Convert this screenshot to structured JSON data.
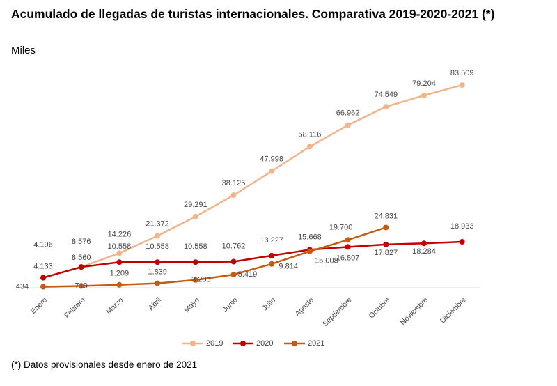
{
  "chart_data": {
    "type": "line",
    "title": "Acumulado de llegadas de turistas internacionales. Comparativa 2019-2020-2021 (*)",
    "subtitle": "Miles",
    "footnote": "(*) Datos provisionales desde enero de 2021",
    "categories": [
      "Enero",
      "Febrero",
      "Marzo",
      "Abril",
      "Mayo",
      "Junio",
      "Julio",
      "Agosto",
      "Septiembre",
      "Octubre",
      "Noviembre",
      "Diciembre"
    ],
    "series": [
      {
        "name": "2019",
        "color": "#f2b48a",
        "values": [
          4196,
          8576,
          14226,
          21372,
          29291,
          38125,
          47998,
          58116,
          66962,
          74549,
          79204,
          83509
        ],
        "value_labels": [
          "4.196",
          "8.576",
          "14.226",
          "21.372",
          "29.291",
          "38.125",
          "47.998",
          "58.116",
          "66.962",
          "74.549",
          "79.204",
          "83.509"
        ]
      },
      {
        "name": "2020",
        "color": "#c00000",
        "values": [
          4133,
          8560,
          10558,
          10558,
          10558,
          10762,
          13227,
          15668,
          16807,
          17827,
          18284,
          18933
        ],
        "value_labels": [
          "4.133",
          "8.560",
          "10.558",
          "10.558",
          "10.558",
          "10.762",
          "13.227",
          "15.668",
          "16.807",
          "17.827",
          "18.284",
          "18.933"
        ]
      },
      {
        "name": "2021",
        "color": "#c55a11",
        "values": [
          434,
          719,
          1209,
          1839,
          3203,
          5419,
          9814,
          15008,
          19700,
          24831,
          null,
          null
        ],
        "value_labels": [
          null,
          null,
          "1.209",
          "1.839",
          "3.203",
          "5.419",
          "9.814",
          "15.008",
          "19.700",
          "24.831",
          null,
          null
        ]
      }
    ],
    "legend": "bottom"
  }
}
